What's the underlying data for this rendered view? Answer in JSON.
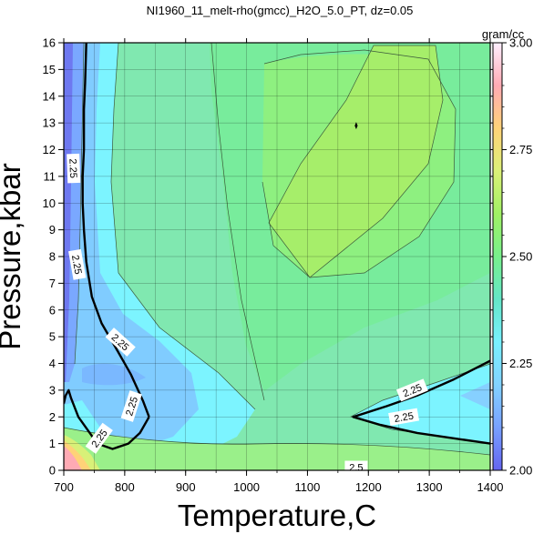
{
  "chart_data": {
    "type": "heatmap",
    "title": "NI1960_11_melt-rho(gmcc)_H2O_5.0_PT, dz=0.05",
    "xlabel": "Temperature,C",
    "ylabel": "Pressure,kbar",
    "xlim": [
      700,
      1400
    ],
    "ylim": [
      0,
      16
    ],
    "x_ticks": [
      "700",
      "800",
      "900",
      "1000",
      "1100",
      "1200",
      "1300",
      "1400"
    ],
    "y_ticks": [
      "0",
      "1",
      "2",
      "3",
      "4",
      "5",
      "6",
      "7",
      "8",
      "9",
      "10",
      "11",
      "12",
      "13",
      "14",
      "15",
      "16"
    ],
    "grid": true,
    "colorbar": {
      "label": "gram/cc",
      "range": [
        2.0,
        3.0
      ],
      "ticks": [
        "2.00",
        "2.25",
        "2.50",
        "2.75",
        "3.00"
      ],
      "stops": [
        {
          "value": 2.0,
          "color": "#6464f0"
        },
        {
          "value": 2.1,
          "color": "#78a0ff"
        },
        {
          "value": 2.2,
          "color": "#82d2ff"
        },
        {
          "value": 2.3,
          "color": "#78f0ff"
        },
        {
          "value": 2.4,
          "color": "#64e6c8"
        },
        {
          "value": 2.5,
          "color": "#78f08c"
        },
        {
          "value": 2.6,
          "color": "#a0f064"
        },
        {
          "value": 2.7,
          "color": "#dcf078"
        },
        {
          "value": 2.8,
          "color": "#ffd278"
        },
        {
          "value": 2.9,
          "color": "#ffaab4"
        },
        {
          "value": 3.0,
          "color": "#fff0ff"
        }
      ]
    },
    "contour_labels": [
      {
        "text": "2.25",
        "x": 716,
        "y": 11.3,
        "angle": 88
      },
      {
        "text": "2.25",
        "x": 722,
        "y": 7.7,
        "angle": 80
      },
      {
        "text": "2.25",
        "x": 793,
        "y": 4.8,
        "angle": 42
      },
      {
        "text": "2.25",
        "x": 811,
        "y": 2.4,
        "angle": -72
      },
      {
        "text": "2.25",
        "x": 758,
        "y": 1.2,
        "angle": -54
      },
      {
        "text": "2.25",
        "x": 1258,
        "y": 2.0,
        "angle": -10
      },
      {
        "text": "2.25",
        "x": 1272,
        "y": 3.0,
        "angle": -22
      },
      {
        "text": "2.5",
        "x": 1180,
        "y": 0.12,
        "angle": 0
      }
    ],
    "bold_contours_2_25": [
      [
        [
          737,
          16
        ],
        [
          735,
          14.5
        ],
        [
          733,
          13.5
        ],
        [
          733,
          12
        ],
        [
          731,
          11
        ],
        [
          731,
          10
        ],
        [
          733,
          9
        ],
        [
          737,
          7.8
        ],
        [
          746,
          6.5
        ],
        [
          762,
          5.5
        ],
        [
          785,
          4.6
        ],
        [
          810,
          3.6
        ],
        [
          830,
          2.6
        ],
        [
          840,
          2.0
        ]
      ],
      [
        [
          840,
          2.0
        ],
        [
          825,
          1.4
        ],
        [
          806,
          1.0
        ],
        [
          780,
          0.8
        ],
        [
          755,
          1.0
        ],
        [
          724,
          2.0
        ],
        [
          712,
          2.7
        ],
        [
          708,
          3.0
        ],
        [
          703,
          2.8
        ],
        [
          700,
          2.5
        ]
      ],
      [
        [
          1400,
          4.1
        ],
        [
          1340,
          3.4
        ],
        [
          1280,
          2.8
        ],
        [
          1230,
          2.4
        ],
        [
          1175,
          2.0
        ],
        [
          1220,
          1.7
        ],
        [
          1280,
          1.4
        ],
        [
          1340,
          1.2
        ],
        [
          1400,
          1.0
        ]
      ]
    ],
    "max_marker": {
      "x": 1180,
      "y": 12.9
    }
  }
}
